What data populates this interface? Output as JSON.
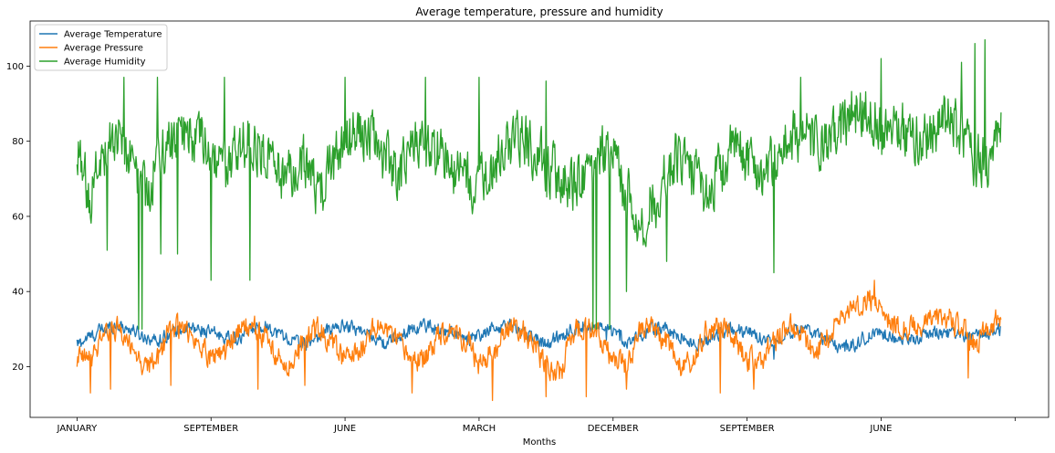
{
  "chart_data": {
    "type": "line",
    "title": "Average temperature, pressure and humidity",
    "xlabel": "Months",
    "ylabel": "",
    "ylim": [
      6.5,
      112
    ],
    "xlim": [
      -70,
      1450
    ],
    "x_ticks": [
      {
        "pos": 0,
        "label": "JANUARY"
      },
      {
        "pos": 200,
        "label": "SEPTEMBER"
      },
      {
        "pos": 400,
        "label": "JUNE"
      },
      {
        "pos": 600,
        "label": "MARCH"
      },
      {
        "pos": 800,
        "label": "DECEMBER"
      },
      {
        "pos": 1000,
        "label": "SEPTEMBER"
      },
      {
        "pos": 1200,
        "label": "JUNE"
      },
      {
        "pos": 1400,
        "label": ""
      }
    ],
    "y_ticks": [
      20,
      40,
      60,
      80,
      100
    ],
    "grid": false,
    "legend_position": "upper-left",
    "n_points": 1380,
    "series": [
      {
        "name": "Average Temperature",
        "color": "#1f77b4",
        "anchors": [
          [
            0,
            26
          ],
          [
            20,
            28
          ],
          [
            40,
            30
          ],
          [
            60,
            31
          ],
          [
            80,
            30
          ],
          [
            100,
            28
          ],
          [
            120,
            27
          ],
          [
            140,
            29
          ],
          [
            160,
            30
          ],
          [
            180,
            30
          ],
          [
            200,
            29
          ],
          [
            220,
            28
          ],
          [
            240,
            27
          ],
          [
            260,
            30
          ],
          [
            280,
            31
          ],
          [
            300,
            29
          ],
          [
            320,
            27
          ],
          [
            340,
            26
          ],
          [
            360,
            28
          ],
          [
            380,
            30
          ],
          [
            400,
            31
          ],
          [
            420,
            30
          ],
          [
            440,
            28
          ],
          [
            460,
            26
          ],
          [
            480,
            28
          ],
          [
            500,
            30
          ],
          [
            520,
            31
          ],
          [
            540,
            30
          ],
          [
            560,
            29
          ],
          [
            580,
            27
          ],
          [
            600,
            28
          ],
          [
            620,
            30
          ],
          [
            640,
            31
          ],
          [
            660,
            30
          ],
          [
            680,
            28
          ],
          [
            700,
            26
          ],
          [
            720,
            28
          ],
          [
            740,
            30
          ],
          [
            760,
            31
          ],
          [
            780,
            30
          ],
          [
            800,
            29
          ],
          [
            820,
            27
          ],
          [
            840,
            28
          ],
          [
            860,
            30
          ],
          [
            880,
            30
          ],
          [
            900,
            28
          ],
          [
            920,
            26
          ],
          [
            940,
            27
          ],
          [
            960,
            29
          ],
          [
            980,
            30
          ],
          [
            1000,
            29
          ],
          [
            1020,
            28
          ],
          [
            1040,
            27
          ],
          [
            1060,
            29
          ],
          [
            1080,
            30
          ],
          [
            1100,
            29
          ],
          [
            1120,
            27
          ],
          [
            1140,
            25
          ],
          [
            1160,
            26
          ],
          [
            1180,
            28
          ],
          [
            1200,
            29
          ],
          [
            1220,
            28
          ],
          [
            1240,
            27
          ],
          [
            1260,
            28
          ],
          [
            1280,
            29
          ],
          [
            1300,
            29
          ],
          [
            1320,
            28
          ],
          [
            1340,
            28
          ],
          [
            1360,
            29
          ],
          [
            1380,
            30
          ]
        ],
        "noise": 1.6,
        "spikes": [
          [
            790,
            27
          ],
          [
            810,
            27
          ],
          [
            140,
            25
          ],
          [
            1040,
            22
          ]
        ]
      },
      {
        "name": "Average Pressure",
        "color": "#ff7f0e",
        "anchors": [
          [
            0,
            22
          ],
          [
            20,
            22
          ],
          [
            40,
            29
          ],
          [
            60,
            30
          ],
          [
            80,
            26
          ],
          [
            100,
            20
          ],
          [
            120,
            22
          ],
          [
            140,
            31
          ],
          [
            160,
            30
          ],
          [
            180,
            26
          ],
          [
            200,
            23
          ],
          [
            220,
            24
          ],
          [
            240,
            29
          ],
          [
            260,
            31
          ],
          [
            280,
            28
          ],
          [
            300,
            22
          ],
          [
            320,
            20
          ],
          [
            340,
            27
          ],
          [
            360,
            30
          ],
          [
            380,
            26
          ],
          [
            400,
            22
          ],
          [
            420,
            24
          ],
          [
            440,
            30
          ],
          [
            460,
            30
          ],
          [
            480,
            26
          ],
          [
            500,
            22
          ],
          [
            520,
            22
          ],
          [
            540,
            29
          ],
          [
            560,
            30
          ],
          [
            580,
            27
          ],
          [
            600,
            21
          ],
          [
            620,
            23
          ],
          [
            640,
            30
          ],
          [
            660,
            30
          ],
          [
            680,
            27
          ],
          [
            700,
            20
          ],
          [
            720,
            18
          ],
          [
            740,
            29
          ],
          [
            760,
            31
          ],
          [
            780,
            28
          ],
          [
            800,
            22
          ],
          [
            820,
            21
          ],
          [
            840,
            29
          ],
          [
            860,
            30
          ],
          [
            880,
            27
          ],
          [
            900,
            20
          ],
          [
            920,
            21
          ],
          [
            940,
            29
          ],
          [
            960,
            31
          ],
          [
            980,
            27
          ],
          [
            1000,
            22
          ],
          [
            1020,
            22
          ],
          [
            1040,
            27
          ],
          [
            1060,
            31
          ],
          [
            1080,
            29
          ],
          [
            1100,
            24
          ],
          [
            1120,
            28
          ],
          [
            1140,
            33
          ],
          [
            1160,
            36
          ],
          [
            1180,
            38
          ],
          [
            1200,
            36
          ],
          [
            1220,
            31
          ],
          [
            1240,
            30
          ],
          [
            1260,
            31
          ],
          [
            1280,
            33
          ],
          [
            1300,
            33
          ],
          [
            1320,
            30
          ],
          [
            1340,
            26
          ],
          [
            1360,
            31
          ],
          [
            1380,
            33
          ]
        ],
        "noise": 2.8,
        "spikes": [
          [
            20,
            13
          ],
          [
            50,
            14
          ],
          [
            140,
            15
          ],
          [
            270,
            14
          ],
          [
            340,
            15
          ],
          [
            500,
            13
          ],
          [
            620,
            11
          ],
          [
            700,
            12
          ],
          [
            760,
            12
          ],
          [
            820,
            14
          ],
          [
            960,
            13
          ],
          [
            1010,
            14
          ],
          [
            1190,
            43
          ],
          [
            1330,
            17
          ]
        ]
      },
      {
        "name": "Average Humidity",
        "color": "#2ca02c",
        "anchors": [
          [
            0,
            75
          ],
          [
            20,
            66
          ],
          [
            40,
            78
          ],
          [
            60,
            82
          ],
          [
            80,
            76
          ],
          [
            100,
            66
          ],
          [
            120,
            74
          ],
          [
            140,
            80
          ],
          [
            160,
            82
          ],
          [
            180,
            80
          ],
          [
            200,
            76
          ],
          [
            220,
            72
          ],
          [
            240,
            78
          ],
          [
            260,
            80
          ],
          [
            280,
            78
          ],
          [
            300,
            72
          ],
          [
            320,
            70
          ],
          [
            340,
            74
          ],
          [
            360,
            66
          ],
          [
            380,
            74
          ],
          [
            400,
            80
          ],
          [
            420,
            82
          ],
          [
            440,
            80
          ],
          [
            460,
            76
          ],
          [
            480,
            72
          ],
          [
            500,
            78
          ],
          [
            520,
            80
          ],
          [
            540,
            78
          ],
          [
            560,
            72
          ],
          [
            580,
            70
          ],
          [
            600,
            68
          ],
          [
            620,
            74
          ],
          [
            640,
            78
          ],
          [
            660,
            80
          ],
          [
            680,
            78
          ],
          [
            700,
            74
          ],
          [
            720,
            70
          ],
          [
            740,
            68
          ],
          [
            760,
            72
          ],
          [
            780,
            78
          ],
          [
            800,
            76
          ],
          [
            820,
            66
          ],
          [
            840,
            58
          ],
          [
            860,
            64
          ],
          [
            880,
            72
          ],
          [
            900,
            76
          ],
          [
            920,
            70
          ],
          [
            940,
            66
          ],
          [
            960,
            72
          ],
          [
            980,
            78
          ],
          [
            1000,
            76
          ],
          [
            1020,
            72
          ],
          [
            1040,
            74
          ],
          [
            1060,
            80
          ],
          [
            1080,
            82
          ],
          [
            1100,
            80
          ],
          [
            1120,
            78
          ],
          [
            1140,
            84
          ],
          [
            1160,
            88
          ],
          [
            1180,
            88
          ],
          [
            1200,
            84
          ],
          [
            1220,
            86
          ],
          [
            1240,
            82
          ],
          [
            1260,
            80
          ],
          [
            1280,
            84
          ],
          [
            1300,
            86
          ],
          [
            1320,
            82
          ],
          [
            1340,
            76
          ],
          [
            1360,
            74
          ],
          [
            1380,
            84
          ]
        ],
        "noise": 6.5,
        "spikes": [
          [
            45,
            51
          ],
          [
            70,
            97
          ],
          [
            120,
            97
          ],
          [
            125,
            50
          ],
          [
            150,
            50
          ],
          [
            200,
            43
          ],
          [
            220,
            97
          ],
          [
            258,
            43
          ],
          [
            400,
            97
          ],
          [
            520,
            97
          ],
          [
            600,
            97
          ],
          [
            700,
            96
          ],
          [
            770,
            97
          ],
          [
            820,
            40
          ],
          [
            850,
            55
          ],
          [
            880,
            48
          ],
          [
            1040,
            45
          ],
          [
            1080,
            97
          ],
          [
            1200,
            102
          ],
          [
            1355,
            107
          ],
          [
            1340,
            106
          ],
          [
            1320,
            101
          ]
        ],
        "dips": [
          [
            92,
            30
          ],
          [
            97,
            30
          ],
          [
            770,
            30
          ],
          [
            775,
            30
          ],
          [
            795,
            30
          ]
        ]
      }
    ]
  }
}
